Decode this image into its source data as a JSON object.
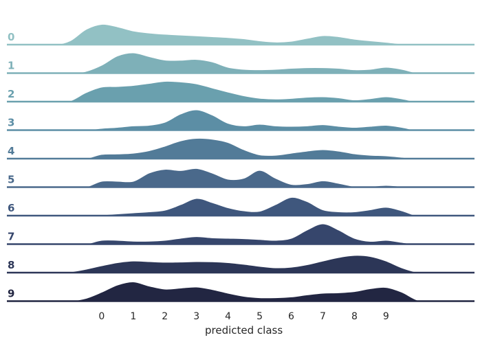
{
  "chart_data": {
    "type": "area",
    "subtype": "ridgeline",
    "title": "",
    "xlabel": "predicted class",
    "ylabel": "",
    "xticks": [
      "0",
      "1",
      "2",
      "3",
      "4",
      "5",
      "6",
      "7",
      "8",
      "9"
    ],
    "xlim": [
      -3.0,
      11.8
    ],
    "grid": false,
    "legend": "none",
    "x": [
      -2.5,
      -2,
      -1.5,
      -1,
      -0.5,
      0,
      0.5,
      1,
      1.5,
      2,
      2.5,
      3,
      3.5,
      4,
      4.5,
      5,
      5.5,
      6,
      6.5,
      7,
      7.5,
      8,
      8.5,
      9,
      9.5,
      10,
      10.5,
      11
    ],
    "series": [
      {
        "name": "0",
        "color": "#92c1c4",
        "values": [
          0,
          0,
          0,
          0.2,
          0.75,
          1.0,
          0.88,
          0.68,
          0.58,
          0.52,
          0.48,
          0.44,
          0.4,
          0.36,
          0.3,
          0.2,
          0.14,
          0.18,
          0.32,
          0.45,
          0.4,
          0.28,
          0.2,
          0.13,
          0.05,
          0,
          0,
          0
        ]
      },
      {
        "name": "1",
        "color": "#7eb0b8",
        "values": [
          0,
          0,
          0,
          0,
          0.1,
          0.4,
          0.85,
          1.0,
          0.82,
          0.65,
          0.64,
          0.68,
          0.56,
          0.3,
          0.2,
          0.18,
          0.2,
          0.25,
          0.28,
          0.28,
          0.25,
          0.18,
          0.2,
          0.3,
          0.2,
          0.02,
          0,
          0
        ]
      },
      {
        "name": "2",
        "color": "#6aa0ae",
        "values": [
          0,
          0,
          0,
          0.05,
          0.45,
          0.72,
          0.75,
          0.8,
          0.9,
          1.0,
          0.97,
          0.88,
          0.68,
          0.48,
          0.3,
          0.18,
          0.14,
          0.17,
          0.23,
          0.25,
          0.2,
          0.1,
          0.16,
          0.25,
          0.15,
          0,
          0,
          0
        ]
      },
      {
        "name": "3",
        "color": "#5c8ea5",
        "values": [
          0,
          0,
          0,
          0,
          0.02,
          0.1,
          0.15,
          0.22,
          0.25,
          0.4,
          0.8,
          1.0,
          0.75,
          0.35,
          0.22,
          0.3,
          0.22,
          0.2,
          0.22,
          0.28,
          0.2,
          0.15,
          0.2,
          0.25,
          0.15,
          0,
          0,
          0
        ]
      },
      {
        "name": "4",
        "color": "#527b98",
        "values": [
          0,
          0,
          0,
          0,
          0.02,
          0.22,
          0.24,
          0.28,
          0.4,
          0.62,
          0.88,
          1.0,
          0.96,
          0.8,
          0.45,
          0.2,
          0.18,
          0.28,
          0.38,
          0.45,
          0.38,
          0.25,
          0.18,
          0.15,
          0.08,
          0,
          0,
          0
        ]
      },
      {
        "name": "5",
        "color": "#4a698b",
        "values": [
          0,
          0,
          0,
          0,
          0.02,
          0.3,
          0.3,
          0.3,
          0.7,
          0.88,
          0.82,
          0.92,
          0.7,
          0.4,
          0.45,
          0.83,
          0.45,
          0.15,
          0.18,
          0.32,
          0.2,
          0.05,
          0.05,
          0.1,
          0.05,
          0,
          0,
          0
        ]
      },
      {
        "name": "6",
        "color": "#3f577d",
        "values": [
          0,
          0,
          0,
          0,
          0,
          0.05,
          0.1,
          0.15,
          0.2,
          0.28,
          0.55,
          0.85,
          0.65,
          0.4,
          0.25,
          0.23,
          0.55,
          0.9,
          0.7,
          0.3,
          0.2,
          0.2,
          0.3,
          0.42,
          0.25,
          0,
          0,
          0
        ]
      },
      {
        "name": "7",
        "color": "#36466c",
        "values": [
          0,
          0,
          0,
          0,
          0.02,
          0.2,
          0.2,
          0.16,
          0.16,
          0.2,
          0.3,
          0.38,
          0.32,
          0.3,
          0.28,
          0.24,
          0.2,
          0.3,
          0.7,
          1.0,
          0.7,
          0.3,
          0.15,
          0.2,
          0.1,
          0,
          0,
          0
        ]
      },
      {
        "name": "8",
        "color": "#2c3657",
        "values": [
          0,
          0,
          0,
          0.05,
          0.18,
          0.35,
          0.5,
          0.58,
          0.55,
          0.52,
          0.53,
          0.55,
          0.54,
          0.5,
          0.42,
          0.32,
          0.25,
          0.28,
          0.4,
          0.58,
          0.75,
          0.85,
          0.8,
          0.58,
          0.25,
          0.03,
          0,
          0
        ]
      },
      {
        "name": "9",
        "color": "#222642",
        "values": [
          0,
          0,
          0,
          0.02,
          0.15,
          0.45,
          0.8,
          0.95,
          0.75,
          0.6,
          0.65,
          0.7,
          0.58,
          0.4,
          0.25,
          0.18,
          0.18,
          0.22,
          0.32,
          0.4,
          0.42,
          0.48,
          0.62,
          0.68,
          0.45,
          0.06,
          0,
          0
        ]
      }
    ]
  }
}
